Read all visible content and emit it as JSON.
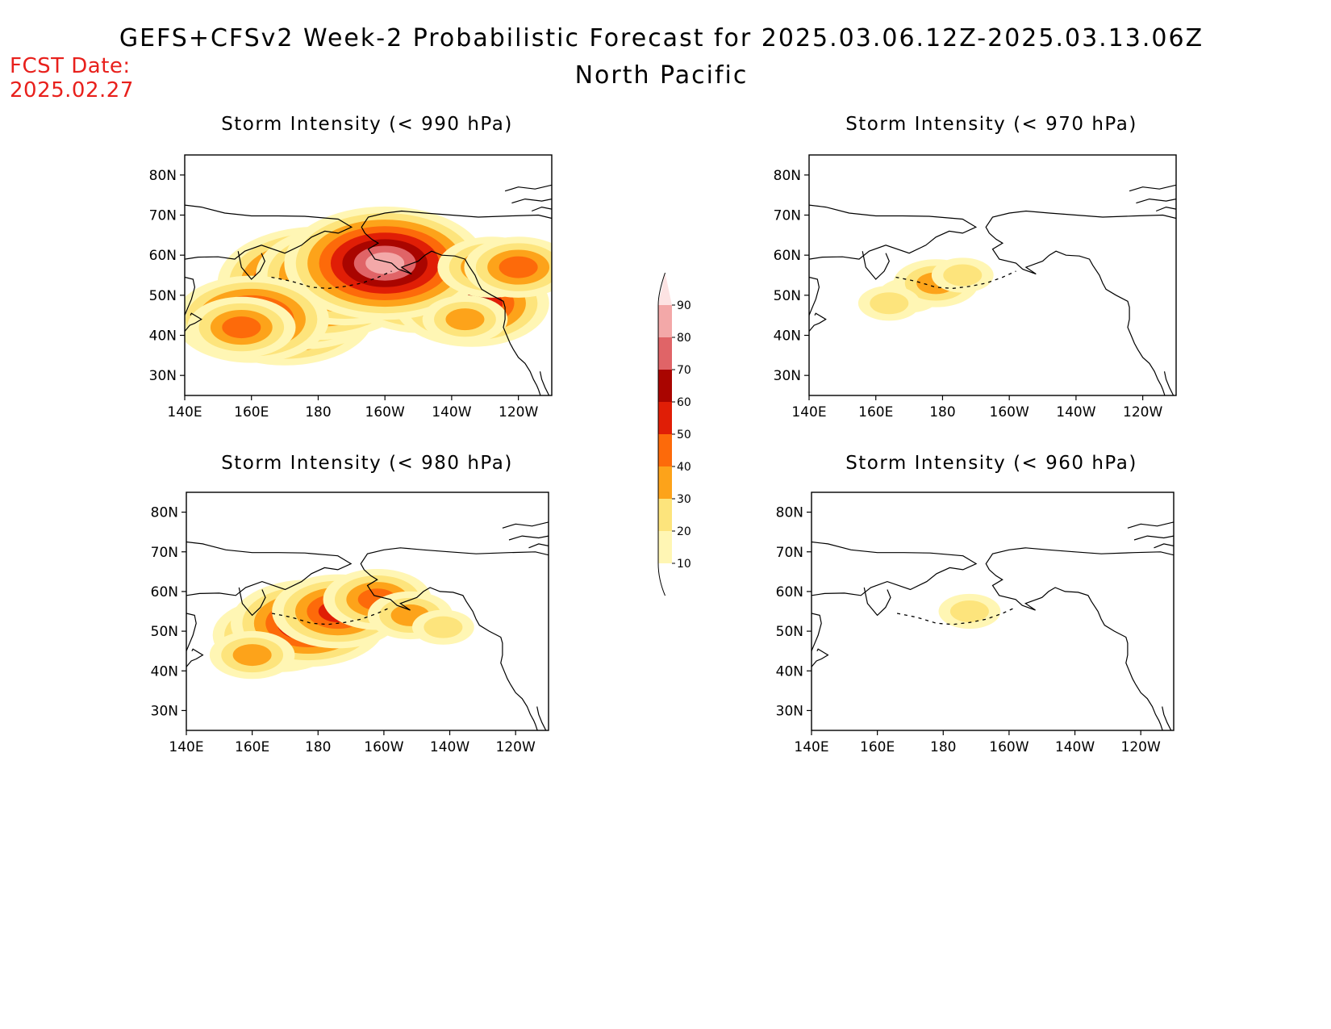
{
  "header": {
    "title": "GEFS+CFSv2 Week-2 Probabilistic Forecast for 2025.03.06.12Z-2025.03.13.06Z",
    "region": "North Pacific",
    "fcst_date_label": "FCST Date:",
    "fcst_date_value": "2025.02.27"
  },
  "axes": {
    "lat_labels": [
      "80N",
      "70N",
      "60N",
      "50N",
      "40N",
      "30N"
    ],
    "lat_values": [
      80,
      70,
      60,
      50,
      40,
      30
    ],
    "lon_labels": [
      "140E",
      "160E",
      "180",
      "160W",
      "140W",
      "120W"
    ],
    "lon_values": [
      140,
      160,
      180,
      200,
      220,
      240
    ],
    "lat_range": [
      25,
      85
    ],
    "lon_range": [
      140,
      250
    ]
  },
  "colorbar": {
    "levels": [
      10,
      20,
      30,
      40,
      50,
      60,
      70,
      80,
      90
    ],
    "colors": [
      "#fff6b4",
      "#fde47c",
      "#fda31a",
      "#fd6a0a",
      "#e01e06",
      "#a90500",
      "#e06467",
      "#f3a8a8",
      "#fde3e3"
    ]
  },
  "panels": [
    {
      "id": "p990",
      "title": "Storm Intensity (< 990 hPa)"
    },
    {
      "id": "p970",
      "title": "Storm Intensity (< 970 hPa)"
    },
    {
      "id": "p980",
      "title": "Storm Intensity (< 980 hPa)"
    },
    {
      "id": "p960",
      "title": "Storm Intensity (< 960 hPa)"
    }
  ],
  "probability_fields": {
    "p990": [
      {
        "lon": 170,
        "lat": 45,
        "level": 6
      },
      {
        "lon": 175,
        "lat": 49,
        "level": 6
      },
      {
        "lon": 180,
        "lat": 53,
        "level": 7
      },
      {
        "lon": 188,
        "lat": 55,
        "level": 6
      },
      {
        "lon": 160,
        "lat": 44,
        "level": 5
      },
      {
        "lon": 157,
        "lat": 42,
        "level": 3
      },
      {
        "lon": 205,
        "lat": 56,
        "level": 6
      },
      {
        "lon": 212,
        "lat": 53,
        "level": 6
      },
      {
        "lon": 220,
        "lat": 52,
        "level": 5
      },
      {
        "lon": 226,
        "lat": 48,
        "level": 5
      },
      {
        "lon": 200,
        "lat": 58,
        "level": 7
      },
      {
        "lon": 232,
        "lat": 57,
        "level": 3
      },
      {
        "lon": 240,
        "lat": 57,
        "level": 3
      },
      {
        "lon": 224,
        "lat": 44,
        "level": 2
      }
    ],
    "p970": [
      {
        "lon": 170,
        "lat": 50,
        "level": 1
      },
      {
        "lon": 178,
        "lat": 53,
        "level": 2
      },
      {
        "lon": 186,
        "lat": 55,
        "level": 1
      },
      {
        "lon": 164,
        "lat": 48,
        "level": 1
      }
    ],
    "p980": [
      {
        "lon": 168,
        "lat": 49,
        "level": 4
      },
      {
        "lon": 177,
        "lat": 52,
        "level": 5
      },
      {
        "lon": 186,
        "lat": 55,
        "level": 4
      },
      {
        "lon": 198,
        "lat": 58,
        "level": 3
      },
      {
        "lon": 208,
        "lat": 54,
        "level": 2
      },
      {
        "lon": 218,
        "lat": 51,
        "level": 1
      },
      {
        "lon": 160,
        "lat": 44,
        "level": 2
      }
    ],
    "p960": [
      {
        "lon": 188,
        "lat": 55,
        "level": 1
      }
    ]
  }
}
